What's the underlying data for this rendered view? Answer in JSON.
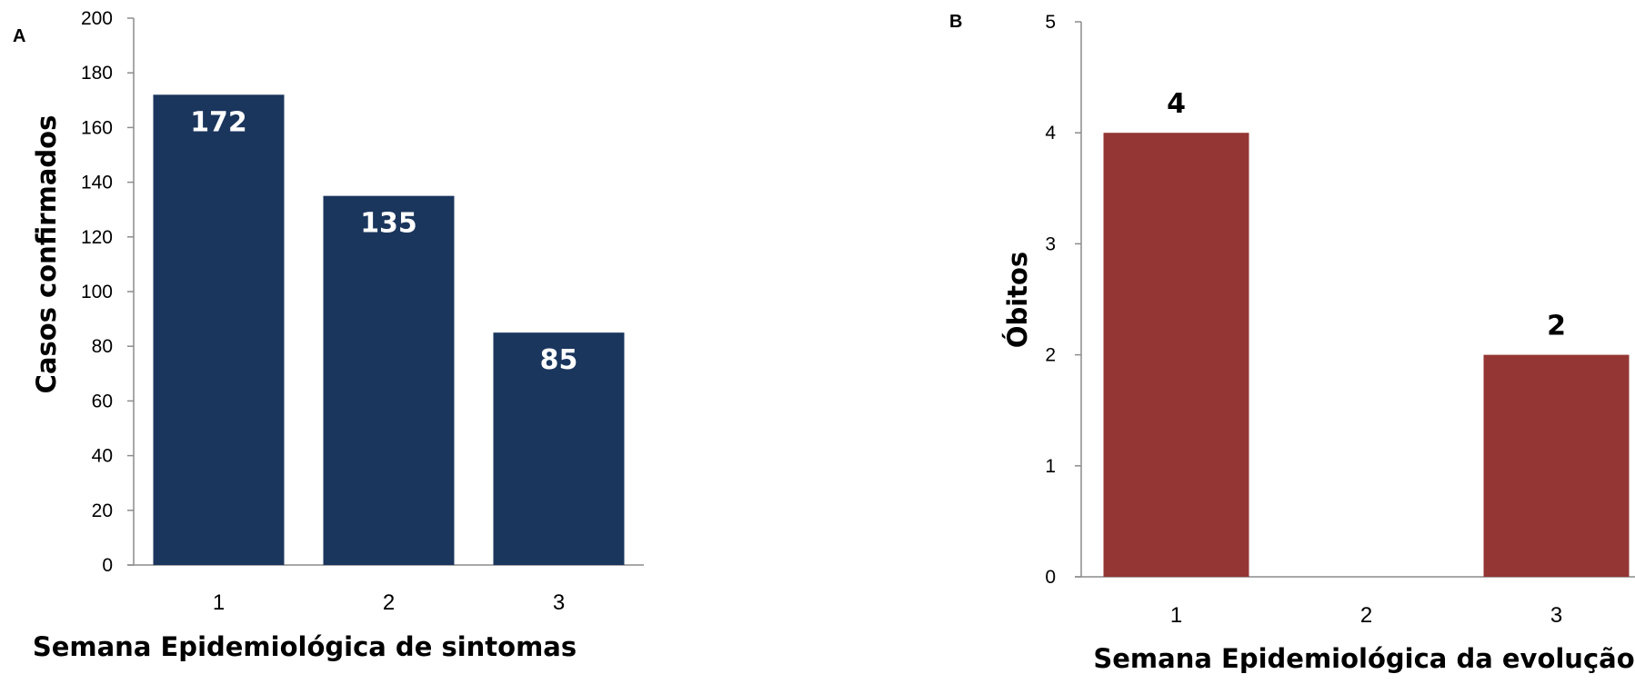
{
  "chart_data": [
    {
      "panel_label": "A",
      "type": "bar",
      "categories": [
        "1",
        "2",
        "3"
      ],
      "values": [
        172,
        135,
        85
      ],
      "data_labels": [
        "172",
        "135",
        "85"
      ],
      "data_label_position": "inside-top",
      "color": "#1b365d",
      "xlabel": "Semana Epidemiológica de sintomas",
      "ylabel": "Casos confirmados",
      "ylim": [
        0,
        200
      ],
      "yticks": [
        "0",
        "20",
        "40",
        "60",
        "80",
        "100",
        "120",
        "140",
        "160",
        "180",
        "200"
      ],
      "grid": false,
      "legend": "none"
    },
    {
      "panel_label": "B",
      "type": "bar",
      "categories": [
        "1",
        "2",
        "3"
      ],
      "values": [
        4,
        0,
        2
      ],
      "data_labels": [
        "4",
        "",
        "2"
      ],
      "data_label_position": "outside-top",
      "color": "#943634",
      "xlabel": "Semana Epidemiológica da evolução",
      "ylabel": "Óbitos",
      "ylim": [
        0,
        5
      ],
      "yticks": [
        "0",
        "1",
        "2",
        "3",
        "4",
        "5"
      ],
      "grid": false,
      "legend": "none"
    }
  ]
}
